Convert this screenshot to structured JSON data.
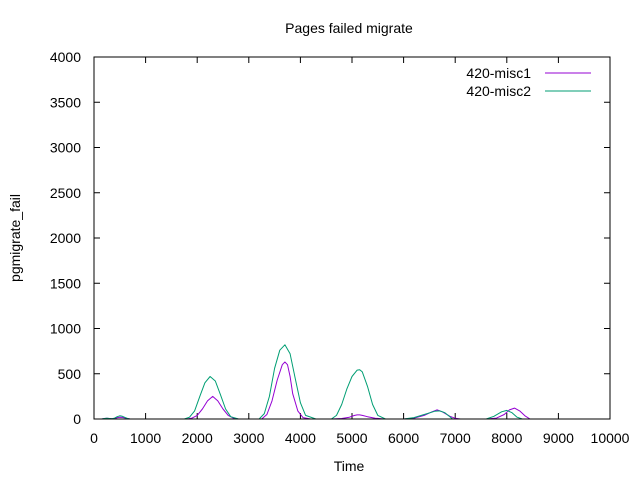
{
  "chart_data": {
    "type": "line",
    "title": "Pages failed migrate",
    "xlabel": "Time",
    "ylabel": "pgmigrate_fail",
    "xlim": [
      0,
      10000
    ],
    "ylim": [
      0,
      4000
    ],
    "xticks": [
      0,
      1000,
      2000,
      3000,
      4000,
      5000,
      6000,
      7000,
      8000,
      9000,
      10000
    ],
    "yticks": [
      0,
      500,
      1000,
      1500,
      2000,
      2500,
      3000,
      3500,
      4000
    ],
    "xtick_labels": [
      "0",
      "1000",
      "2000",
      "3000",
      "4000",
      "5000",
      "6000",
      "7000",
      "8000",
      "9000",
      "10000"
    ],
    "ytick_labels": [
      "0",
      "500",
      "1000",
      "1500",
      "2000",
      "2500",
      "3000",
      "3500",
      "4000"
    ],
    "grid": false,
    "legend_position": "top-right",
    "series": [
      {
        "name": "420-misc1",
        "color": "#9400d3",
        "x": [
          150,
          200,
          250,
          300,
          350,
          400,
          450,
          500,
          550,
          600,
          650,
          700,
          1800,
          1900,
          2000,
          2100,
          2200,
          2300,
          2400,
          2500,
          2600,
          2700,
          2800,
          3250,
          3350,
          3450,
          3550,
          3650,
          3700,
          3750,
          3800,
          3850,
          3950,
          4050,
          4200,
          4600,
          4800,
          4950,
          5050,
          5100,
          5150,
          5200,
          5300,
          5450,
          5650,
          6000,
          6200,
          6400,
          6550,
          6650,
          6750,
          6900,
          7000,
          7100,
          7600,
          7800,
          7950,
          8050,
          8150,
          8250,
          8350,
          8450
        ],
        "y": [
          0,
          5,
          8,
          5,
          2,
          5,
          15,
          20,
          18,
          12,
          5,
          0,
          0,
          10,
          40,
          110,
          200,
          250,
          200,
          110,
          40,
          10,
          0,
          0,
          50,
          200,
          430,
          600,
          630,
          600,
          470,
          280,
          90,
          15,
          0,
          0,
          5,
          20,
          40,
          45,
          45,
          40,
          25,
          8,
          0,
          0,
          10,
          40,
          80,
          100,
          80,
          30,
          8,
          0,
          0,
          10,
          50,
          100,
          120,
          90,
          35,
          0
        ]
      },
      {
        "name": "420-misc2",
        "color": "#009e73",
        "x": [
          150,
          200,
          250,
          300,
          350,
          400,
          450,
          500,
          550,
          600,
          650,
          700,
          1750,
          1850,
          1950,
          2050,
          2150,
          2250,
          2350,
          2450,
          2550,
          2650,
          2800,
          3200,
          3300,
          3400,
          3500,
          3600,
          3700,
          3800,
          3900,
          4000,
          4100,
          4300,
          4600,
          4700,
          4800,
          4900,
          5000,
          5100,
          5150,
          5200,
          5300,
          5400,
          5500,
          5650,
          6000,
          6200,
          6400,
          6600,
          6700,
          6800,
          6950,
          7600,
          7750,
          7900,
          8000,
          8100,
          8200,
          8300
        ],
        "y": [
          0,
          5,
          8,
          5,
          3,
          10,
          25,
          35,
          30,
          18,
          6,
          0,
          0,
          20,
          90,
          250,
          400,
          470,
          420,
          270,
          110,
          25,
          0,
          0,
          60,
          250,
          560,
          760,
          820,
          720,
          450,
          180,
          40,
          0,
          0,
          40,
          160,
          330,
          470,
          540,
          545,
          520,
          360,
          160,
          40,
          0,
          0,
          15,
          50,
          85,
          90,
          70,
          0,
          0,
          30,
          80,
          95,
          70,
          20,
          0
        ]
      }
    ]
  }
}
